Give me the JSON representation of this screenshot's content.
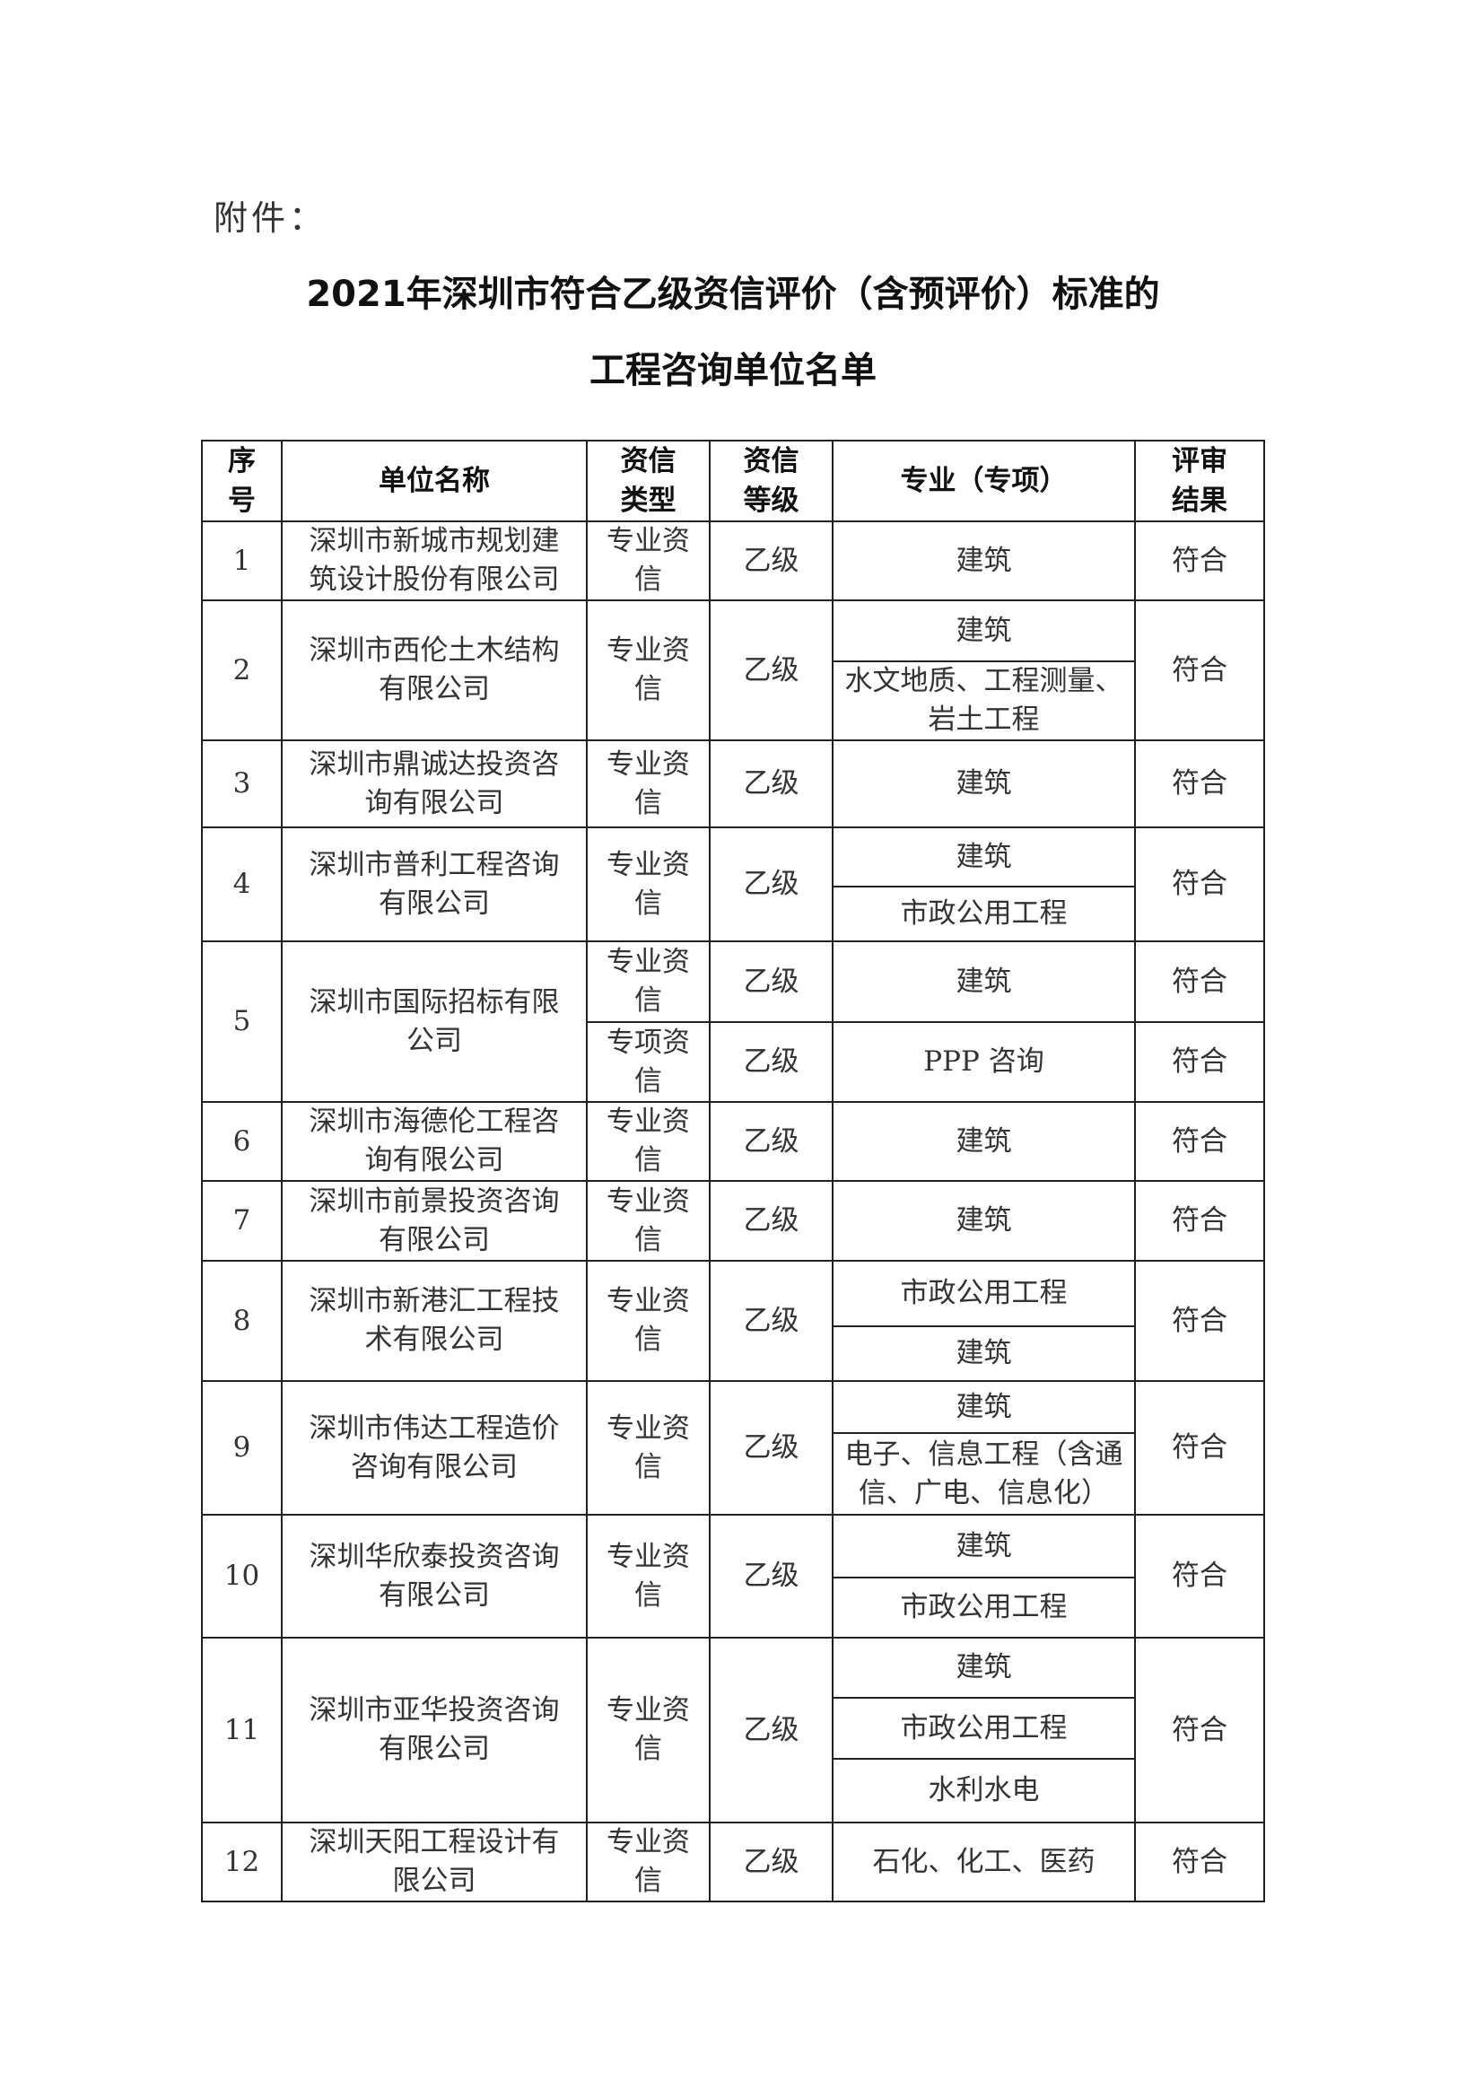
{
  "attachment_label": "附件：",
  "title_line1": "2021年深圳市符合乙级资信评价（含预评价）标准的",
  "title_line2": "工程咨询单位名单",
  "table": {
    "headers": [
      "序号",
      "单位名称",
      "资信类型",
      "资信等级",
      "专业（专项）",
      "评审结果"
    ],
    "rows": [
      {
        "seq": "1",
        "name": "深圳市新城市规划建筑设计股份有限公司",
        "entries": [
          {
            "type": "专业资信",
            "grade": "乙级",
            "specialties": [
              "建筑"
            ],
            "result": "符合"
          }
        ]
      },
      {
        "seq": "2",
        "name": "深圳市西伦土木结构有限公司",
        "entries": [
          {
            "type": "专业资信",
            "grade": "乙级",
            "specialties": [
              "建筑",
              "水文地质、工程测量、岩土工程"
            ],
            "result": "符合"
          }
        ]
      },
      {
        "seq": "3",
        "name": "深圳市鼎诚达投资咨询有限公司",
        "entries": [
          {
            "type": "专业资信",
            "grade": "乙级",
            "specialties": [
              "建筑"
            ],
            "result": "符合"
          }
        ]
      },
      {
        "seq": "4",
        "name": "深圳市普利工程咨询有限公司",
        "entries": [
          {
            "type": "专业资信",
            "grade": "乙级",
            "specialties": [
              "建筑",
              "市政公用工程"
            ],
            "result": "符合"
          }
        ]
      },
      {
        "seq": "5",
        "name": "深圳市国际招标有限公司",
        "entries": [
          {
            "type": "专业资信",
            "grade": "乙级",
            "specialties": [
              "建筑"
            ],
            "result": "符合"
          },
          {
            "type": "专项资信",
            "grade": "乙级",
            "specialties": [
              "PPP 咨询"
            ],
            "result": "符合"
          }
        ]
      },
      {
        "seq": "6",
        "name": "深圳市海德伦工程咨询有限公司",
        "entries": [
          {
            "type": "专业资信",
            "grade": "乙级",
            "specialties": [
              "建筑"
            ],
            "result": "符合"
          }
        ]
      },
      {
        "seq": "7",
        "name": "深圳市前景投资咨询有限公司",
        "entries": [
          {
            "type": "专业资信",
            "grade": "乙级",
            "specialties": [
              "建筑"
            ],
            "result": "符合"
          }
        ]
      },
      {
        "seq": "8",
        "name": "深圳市新港汇工程技术有限公司",
        "entries": [
          {
            "type": "专业资信",
            "grade": "乙级",
            "specialties": [
              "市政公用工程",
              "建筑"
            ],
            "result": "符合"
          }
        ]
      },
      {
        "seq": "9",
        "name": "深圳市伟达工程造价咨询有限公司",
        "entries": [
          {
            "type": "专业资信",
            "grade": "乙级",
            "specialties": [
              "建筑",
              "电子、信息工程（含通信、广电、信息化）"
            ],
            "result": "符合"
          }
        ]
      },
      {
        "seq": "10",
        "name": "深圳华欣泰投资咨询有限公司",
        "entries": [
          {
            "type": "专业资信",
            "grade": "乙级",
            "specialties": [
              "建筑",
              "市政公用工程"
            ],
            "result": "符合"
          }
        ]
      },
      {
        "seq": "11",
        "name": "深圳市亚华投资咨询有限公司",
        "entries": [
          {
            "type": "专业资信",
            "grade": "乙级",
            "specialties": [
              "建筑",
              "市政公用工程",
              "水利水电"
            ],
            "result": "符合"
          }
        ]
      },
      {
        "seq": "12",
        "name": "深圳天阳工程设计有限公司",
        "entries": [
          {
            "type": "专业资信",
            "grade": "乙级",
            "specialties": [
              "石化、化工、医药"
            ],
            "result": "符合"
          }
        ]
      }
    ]
  }
}
